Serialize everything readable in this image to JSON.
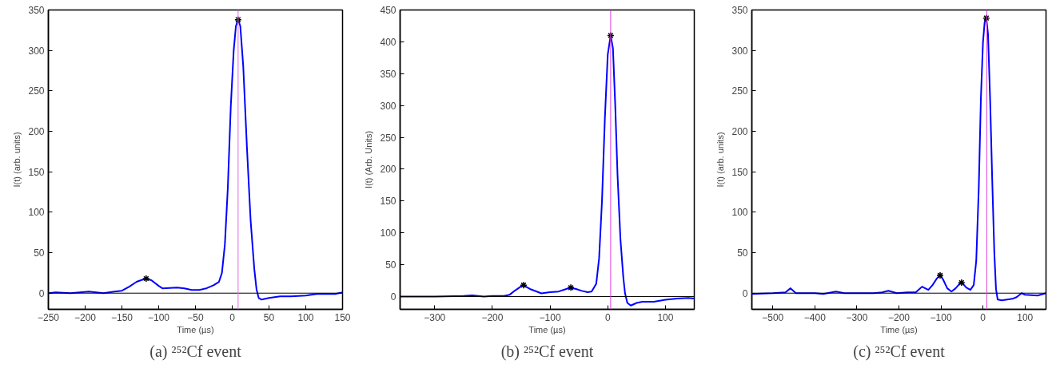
{
  "chart_data": [
    {
      "type": "line",
      "title": "(a) ²⁵²Cf event",
      "xlabel": "Time (µs)",
      "ylabel": "I(t) (arb. units)",
      "xlim": [
        -250,
        150
      ],
      "ylim": [
        -20,
        350
      ],
      "xticks": [
        {
          "value": -250,
          "label": "−250"
        },
        {
          "value": -200,
          "label": "−200"
        },
        {
          "value": -150,
          "label": "−150"
        },
        {
          "value": -100,
          "label": "−100"
        },
        {
          "value": -50,
          "label": "−50"
        },
        0,
        50,
        100,
        150
      ],
      "yticks": [
        0,
        50,
        100,
        150,
        200,
        250,
        300,
        350
      ],
      "grid": false,
      "series": [
        {
          "color": "#0000ff",
          "line_style": "solid",
          "marker": "none",
          "x": [
            -250,
            -240,
            -220,
            -195,
            -175,
            -160,
            -150,
            -140,
            -130,
            -118,
            -110,
            -100,
            -95,
            -75,
            -65,
            -55,
            -45,
            -35,
            -25,
            -18,
            -14,
            -10,
            -6,
            -2,
            2,
            5,
            8,
            11,
            15,
            20,
            25,
            30,
            33,
            36,
            40,
            50,
            65,
            80,
            100,
            115,
            140,
            150
          ],
          "values": [
            0,
            1,
            0,
            2,
            0,
            2,
            3,
            8,
            14,
            18,
            16,
            9,
            6,
            7,
            6,
            4,
            4,
            6,
            10,
            14,
            25,
            60,
            130,
            230,
            300,
            330,
            338,
            330,
            280,
            180,
            90,
            30,
            5,
            -6,
            -8,
            -6,
            -4,
            -4,
            -3,
            -1,
            -1,
            1
          ]
        },
        {
          "type": "scatter",
          "color": "#000000",
          "marker": "cross",
          "x": [
            -117,
            8
          ],
          "values": [
            18,
            338
          ]
        }
      ],
      "ref_lines": [
        {
          "axis": "y",
          "value": 0,
          "color": "#000000"
        },
        {
          "axis": "x",
          "value": 8,
          "color": "#e070e0"
        }
      ]
    },
    {
      "type": "line",
      "title": "(b) ²⁵²Cf event",
      "xlabel": "Time (µs)",
      "ylabel": "I(t) (Arb. Units)",
      "xlim": [
        -360,
        150
      ],
      "ylim": [
        -20,
        450
      ],
      "xticks": [
        {
          "value": -300,
          "label": "−300"
        },
        {
          "value": -200,
          "label": "−200"
        },
        {
          "value": -100,
          "label": "−100"
        },
        0,
        100
      ],
      "yticks": [
        0,
        50,
        100,
        150,
        200,
        250,
        300,
        350,
        400,
        450
      ],
      "grid": false,
      "series": [
        {
          "color": "#0000ff",
          "line_style": "solid",
          "marker": "none",
          "x": [
            -360,
            -300,
            -250,
            -235,
            -215,
            -200,
            -180,
            -170,
            -160,
            -147,
            -135,
            -115,
            -100,
            -85,
            -75,
            -65,
            -55,
            -45,
            -35,
            -28,
            -20,
            -15,
            -10,
            -5,
            0,
            5,
            9,
            13,
            17,
            22,
            27,
            30,
            34,
            40,
            50,
            60,
            80,
            100,
            120,
            140,
            150
          ],
          "values": [
            0,
            0,
            1,
            2,
            0,
            1,
            1,
            3,
            10,
            18,
            12,
            5,
            7,
            8,
            11,
            14,
            12,
            9,
            7,
            8,
            20,
            60,
            150,
            280,
            380,
            410,
            390,
            300,
            190,
            90,
            30,
            5,
            -10,
            -14,
            -10,
            -8,
            -8,
            -5,
            -3,
            -2,
            -3
          ]
        },
        {
          "type": "scatter",
          "color": "#000000",
          "marker": "cross",
          "x": [
            -146,
            -64,
            5
          ],
          "values": [
            18,
            14,
            410
          ]
        }
      ],
      "ref_lines": [
        {
          "axis": "y",
          "value": 0,
          "color": "#000000"
        },
        {
          "axis": "x",
          "value": 5,
          "color": "#e040e0"
        }
      ]
    },
    {
      "type": "line",
      "title": "(c) ²⁵²Cf event",
      "xlabel": "Time (µs)",
      "ylabel": "I(t) (arb. units)",
      "xlim": [
        -550,
        150
      ],
      "ylim": [
        -20,
        350
      ],
      "xticks": [
        {
          "value": -500,
          "label": "−500"
        },
        {
          "value": -400,
          "label": "−400"
        },
        {
          "value": -300,
          "label": "−300"
        },
        {
          "value": -200,
          "label": "−200"
        },
        {
          "value": -100,
          "label": "−100"
        },
        0,
        100
      ],
      "yticks": [
        0,
        50,
        100,
        150,
        200,
        250,
        300,
        350
      ],
      "grid": false,
      "series": [
        {
          "color": "#0000ff",
          "line_style": "solid",
          "marker": "none",
          "x": [
            -550,
            -500,
            -470,
            -458,
            -445,
            -400,
            -380,
            -350,
            -330,
            -300,
            -260,
            -240,
            -225,
            -205,
            -180,
            -160,
            -145,
            -130,
            -120,
            -110,
            -102,
            -95,
            -85,
            -75,
            -65,
            -55,
            -50,
            -40,
            -30,
            -22,
            -16,
            -10,
            -5,
            0,
            4,
            8,
            12,
            17,
            22,
            27,
            31,
            35,
            45,
            70,
            80,
            92,
            100,
            130,
            150
          ],
          "values": [
            -1,
            0,
            1,
            6,
            0,
            0,
            -1,
            2,
            0,
            0,
            0,
            1,
            3,
            0,
            1,
            1,
            8,
            4,
            10,
            18,
            22,
            17,
            6,
            2,
            6,
            12,
            13,
            7,
            4,
            10,
            40,
            130,
            240,
            310,
            335,
            340,
            320,
            240,
            140,
            50,
            5,
            -8,
            -9,
            -7,
            -5,
            0,
            -2,
            -3,
            0
          ]
        },
        {
          "type": "scatter",
          "color": "#000000",
          "marker": "cross",
          "x": [
            -102,
            -51,
            8
          ],
          "values": [
            22,
            13,
            340
          ]
        }
      ],
      "ref_lines": [
        {
          "axis": "y",
          "value": 0,
          "color": "#000000"
        },
        {
          "axis": "x",
          "value": 9,
          "color": "#e040e0"
        }
      ]
    }
  ]
}
